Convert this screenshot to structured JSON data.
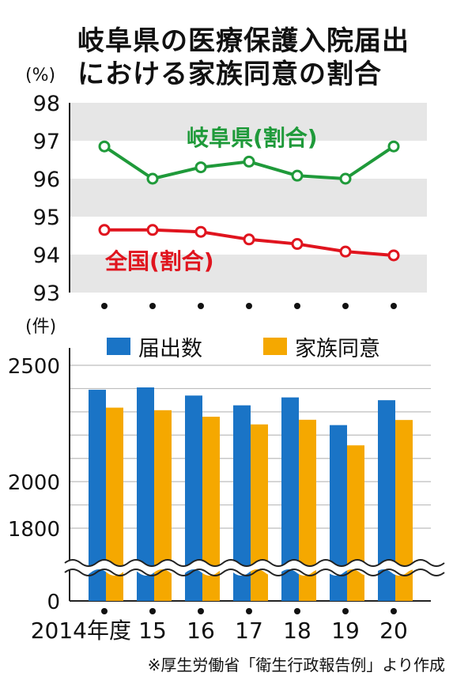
{
  "title": {
    "line1": "岐阜県の医療保護入院届出",
    "line2": "における家族同意の割合"
  },
  "source": "※厚生労働省「衛生行政報告例」より作成",
  "chart_data": [
    {
      "type": "line",
      "unit_label": "(%)",
      "ylim": [
        93,
        98
      ],
      "yticks": [
        "93",
        "94",
        "95",
        "96",
        "97",
        "98"
      ],
      "grid": "alternating bands",
      "series": [
        {
          "name": "岐阜県(割合)",
          "color": "#1f9a3a",
          "values": [
            96.85,
            96.0,
            96.3,
            96.45,
            96.08,
            96.0,
            96.85
          ]
        },
        {
          "name": "全国(割合)",
          "color": "#e0141e",
          "values": [
            94.65,
            94.65,
            94.6,
            94.4,
            94.28,
            94.08,
            93.98
          ]
        }
      ],
      "legend_placement": "inline labels"
    },
    {
      "type": "bar",
      "unit_label": "(件)",
      "ylim": [
        0,
        2500
      ],
      "axis_break": "between 0 and 1800",
      "yticks": [
        "0",
        "1800",
        "2000",
        "2500"
      ],
      "series": [
        {
          "name": "届出数",
          "color": "#1a74c6",
          "values": [
            2395,
            2405,
            2370,
            2328,
            2362,
            2243,
            2350
          ]
        },
        {
          "name": "家族同意",
          "color": "#f5a800",
          "values": [
            2318,
            2307,
            2279,
            2246,
            2266,
            2156,
            2265
          ]
        }
      ],
      "legend_placement": "top-right"
    }
  ],
  "x_labels": [
    "2014年度",
    "15",
    "16",
    "17",
    "18",
    "19",
    "20"
  ]
}
